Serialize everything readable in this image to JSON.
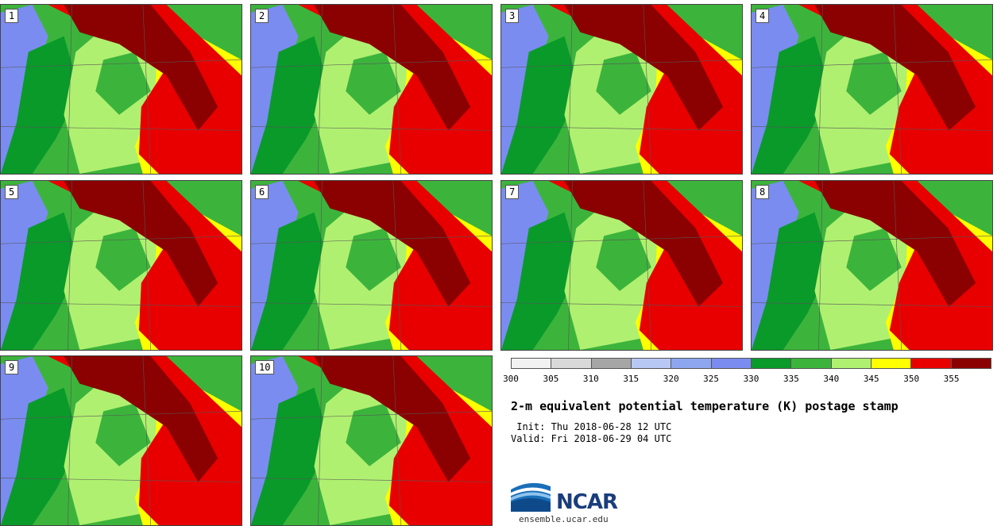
{
  "panels": [
    {
      "label": "1"
    },
    {
      "label": "2"
    },
    {
      "label": "3"
    },
    {
      "label": "4"
    },
    {
      "label": "5"
    },
    {
      "label": "6"
    },
    {
      "label": "7"
    },
    {
      "label": "8"
    },
    {
      "label": "9"
    },
    {
      "label": "10"
    }
  ],
  "colorbar": {
    "ticks": [
      "300",
      "305",
      "310",
      "315",
      "320",
      "325",
      "330",
      "335",
      "340",
      "345",
      "350",
      "355"
    ],
    "colors": [
      "#f2f2f2",
      "#d9d9d9",
      "#a6a6a6",
      "#b8c8f5",
      "#8ea6f0",
      "#7a8cf0",
      "#0a9a2a",
      "#3cb43c",
      "#b0f070",
      "#ffff00",
      "#e80000",
      "#8b0000"
    ]
  },
  "field_colors": {
    "cool": "#7a8cf0",
    "dark_green": "#0a9a2a",
    "green": "#3cb43c",
    "light_green": "#b0f070",
    "yellow": "#ffff00",
    "red": "#e80000",
    "dark_red": "#8b0000"
  },
  "title": "2-m equivalent potential temperature (K) postage stamp",
  "init": " Init: Thu 2018-06-28 12 UTC",
  "valid": "Valid: Fri 2018-06-29 04 UTC",
  "logo": {
    "text": "NCAR",
    "icon": "ncar-logo-icon"
  },
  "website": "ensemble.ucar.edu"
}
